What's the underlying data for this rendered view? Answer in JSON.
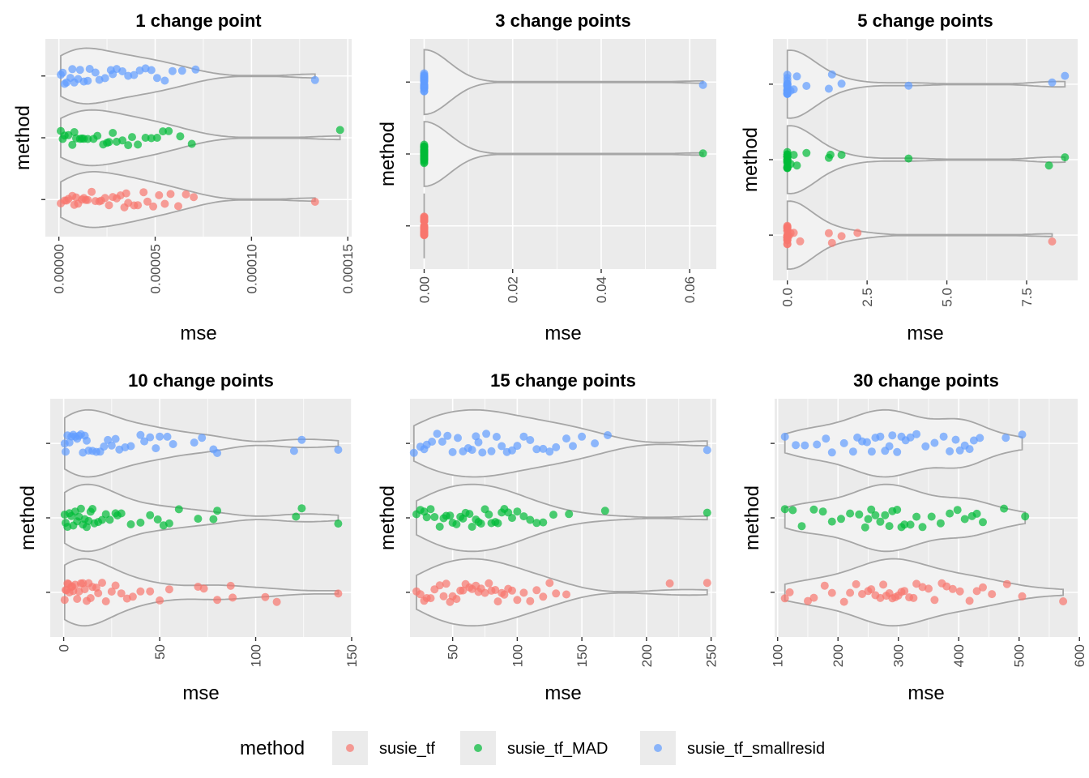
{
  "legend": {
    "title": "method",
    "items": [
      {
        "label": "susie_tf",
        "color": "#F8766D"
      },
      {
        "label": "susie_tf_MAD",
        "color": "#00BA38"
      },
      {
        "label": "susie_tf_smallresid",
        "color": "#619CFF"
      }
    ]
  },
  "chart_data": [
    {
      "type": "scatter",
      "title": "1 change point",
      "xlabel": "mse",
      "ylabel": "method",
      "xlim": [
        -7e-06,
        0.000152
      ],
      "x_ticks": [
        0,
        5e-05,
        0.0001,
        0.00015
      ],
      "x_tick_labels": [
        "0.00000",
        "0.00005",
        "0.00010",
        "0.00015"
      ],
      "grid": true,
      "series": [
        {
          "name": "susie_tf",
          "max": 0.000133,
          "values": [
            1e-06,
            3e-06,
            5e-06,
            7e-06,
            8e-06,
            1e-05,
            1.2e-05,
            1.4e-05,
            1.5e-05,
            1.7e-05,
            1.9e-05,
            2.1e-05,
            2.4e-05,
            2.6e-05,
            2.8e-05,
            3e-05,
            3.2e-05,
            3.4e-05,
            3.6e-05,
            3.9e-05,
            4.1e-05,
            4.4e-05,
            4.6e-05,
            4.9e-05,
            5.2e-05,
            5.5e-05,
            5.8e-05,
            6.2e-05,
            6.6e-05,
            7e-05,
            4e-06,
            9e-06,
            1.3e-05,
            2.2e-05,
            3.5e-05,
            0.000133
          ]
        },
        {
          "name": "susie_tf_MAD",
          "max": 0.000146,
          "values": [
            1e-06,
            3e-06,
            5e-06,
            7e-06,
            9e-06,
            1.1e-05,
            1.3e-05,
            1.5e-05,
            1.8e-05,
            2e-05,
            2.3e-05,
            2.5e-05,
            2.8e-05,
            3e-05,
            3.3e-05,
            3.6e-05,
            3.8e-05,
            4.1e-05,
            4.5e-05,
            4.8e-05,
            5.1e-05,
            5.4e-05,
            5.7e-05,
            6.3e-05,
            6.9e-05,
            2e-06,
            8e-06,
            1.2e-05,
            2.6e-05,
            0.000146
          ]
        },
        {
          "name": "susie_tf_smallresid",
          "max": 0.000133,
          "values": [
            1e-06,
            2e-06,
            4e-06,
            6e-06,
            8e-06,
            1e-05,
            1.1e-05,
            1.3e-05,
            1.6e-05,
            1.9e-05,
            2.1e-05,
            2.4e-05,
            2.7e-05,
            3e-05,
            3.3e-05,
            3.6e-05,
            3.9e-05,
            4.2e-05,
            4.5e-05,
            4.8e-05,
            5.1e-05,
            5.5e-05,
            5.9e-05,
            6.4e-05,
            7.1e-05,
            3e-06,
            7e-06,
            1.5e-05,
            2.8e-05,
            0.000133
          ]
        }
      ]
    },
    {
      "type": "scatter",
      "title": "3 change points",
      "xlabel": "mse",
      "ylabel": "method",
      "xlim": [
        -0.0032,
        0.066
      ],
      "x_ticks": [
        0,
        0.02,
        0.04,
        0.06
      ],
      "x_tick_labels": [
        "0.00",
        "0.02",
        "0.04",
        "0.06"
      ],
      "grid": true,
      "series": [
        {
          "name": "susie_tf",
          "max": 2e-05,
          "values": [
            0,
            0,
            0,
            0,
            0,
            0,
            0,
            0,
            0,
            0,
            0,
            0,
            0,
            0,
            0,
            0,
            0,
            0,
            0,
            0,
            0,
            0,
            0,
            0,
            0,
            0,
            0,
            0,
            0,
            0
          ]
        },
        {
          "name": "susie_tf_MAD",
          "max": 0.063,
          "values": [
            0,
            0,
            0,
            0,
            0,
            0,
            0,
            0,
            0,
            0,
            0,
            0,
            0,
            0,
            0,
            0,
            0,
            0,
            0,
            0,
            0,
            0,
            0,
            0,
            0,
            0,
            0,
            0,
            0,
            0.063
          ]
        },
        {
          "name": "susie_tf_smallresid",
          "max": 0.063,
          "values": [
            0,
            0,
            0,
            0,
            0,
            0,
            0,
            0,
            0,
            0,
            0,
            0,
            0,
            0,
            0,
            0,
            0,
            0,
            0,
            0,
            0,
            0,
            0,
            0,
            0,
            0,
            0,
            0,
            0,
            0.063
          ]
        }
      ]
    },
    {
      "type": "scatter",
      "title": "5 change points",
      "xlabel": "mse",
      "ylabel": "method",
      "xlim": [
        -0.45,
        9.1
      ],
      "x_ticks": [
        0,
        2.5,
        5,
        7.5
      ],
      "x_tick_labels": [
        "0.0",
        "2.5",
        "5.0",
        "7.5"
      ],
      "grid": true,
      "series": [
        {
          "name": "susie_tf",
          "max": 8.3,
          "values": [
            0,
            0,
            0,
            0,
            0,
            0,
            0,
            0,
            0,
            0,
            0,
            0,
            0,
            0,
            0,
            0,
            0,
            0,
            0,
            0,
            0,
            0.05,
            0.1,
            0.2,
            0.4,
            1.3,
            1.4,
            1.7,
            2.2,
            8.3
          ]
        },
        {
          "name": "susie_tf_MAD",
          "max": 8.7,
          "values": [
            0,
            0,
            0,
            0,
            0,
            0,
            0,
            0,
            0,
            0,
            0,
            0,
            0,
            0,
            0,
            0,
            0,
            0,
            0,
            0,
            0.1,
            0.2,
            0.3,
            0.6,
            1.3,
            1.35,
            1.7,
            3.8,
            8.2,
            8.7
          ]
        },
        {
          "name": "susie_tf_smallresid",
          "max": 8.7,
          "values": [
            0,
            0,
            0,
            0,
            0,
            0,
            0,
            0,
            0,
            0,
            0,
            0,
            0,
            0,
            0,
            0,
            0,
            0,
            0,
            0,
            0.1,
            0.2,
            0.3,
            0.6,
            1.3,
            1.4,
            1.7,
            3.8,
            8.3,
            8.7
          ]
        }
      ]
    },
    {
      "type": "scatter",
      "title": "10 change points",
      "xlabel": "mse",
      "ylabel": "method",
      "xlim": [
        -7,
        150
      ],
      "x_ticks": [
        0,
        50,
        100,
        150
      ],
      "x_tick_labels": [
        "0",
        "50",
        "100",
        "150"
      ],
      "grid": true,
      "series": [
        {
          "name": "susie_tf",
          "max": 143,
          "values": [
            0.5,
            1,
            1.5,
            2,
            2.5,
            3,
            4,
            4.5,
            5,
            6,
            7,
            8,
            9,
            10,
            11,
            12,
            13,
            14,
            15,
            17,
            18,
            20,
            22,
            25,
            27,
            30,
            33,
            36,
            40,
            45,
            50,
            55,
            70,
            73,
            80,
            87,
            88,
            105,
            111,
            143
          ]
        },
        {
          "name": "susie_tf_MAD",
          "max": 143,
          "values": [
            0.5,
            1,
            2,
            3,
            4,
            5,
            6,
            7,
            8,
            9,
            10,
            11,
            12,
            13,
            14,
            15,
            16,
            18,
            20,
            22,
            24,
            27,
            28,
            30,
            35,
            40,
            45,
            49,
            52,
            55,
            60,
            70,
            78,
            80,
            121,
            124,
            143
          ]
        },
        {
          "name": "susie_tf_smallresid",
          "max": 143,
          "values": [
            0.5,
            1,
            2,
            3,
            4,
            5,
            6,
            7,
            8,
            9,
            10,
            11,
            12,
            13,
            15,
            17,
            19,
            21,
            23,
            25,
            27,
            29,
            32,
            35,
            40,
            42,
            45,
            48,
            50,
            54,
            57,
            68,
            72,
            78,
            80,
            120,
            124,
            143
          ]
        }
      ]
    },
    {
      "type": "scatter",
      "title": "15 change points",
      "xlabel": "mse",
      "ylabel": "method",
      "xlim": [
        17,
        254
      ],
      "x_ticks": [
        50,
        100,
        150,
        200,
        250
      ],
      "x_tick_labels": [
        "50",
        "100",
        "150",
        "200",
        "250"
      ],
      "grid": true,
      "series": [
        {
          "name": "susie_tf",
          "max": 247,
          "values": [
            22,
            25,
            28,
            30,
            33,
            36,
            40,
            43,
            45,
            48,
            50,
            53,
            56,
            58,
            60,
            63,
            65,
            68,
            70,
            72,
            75,
            78,
            80,
            83,
            85,
            88,
            90,
            93,
            96,
            100,
            105,
            110,
            115,
            120,
            125,
            130,
            138,
            218,
            247
          ]
        },
        {
          "name": "susie_tf_MAD",
          "max": 247,
          "values": [
            22,
            25,
            28,
            30,
            33,
            36,
            40,
            43,
            45,
            48,
            50,
            53,
            56,
            58,
            60,
            63,
            65,
            68,
            70,
            72,
            75,
            78,
            80,
            83,
            85,
            88,
            90,
            93,
            96,
            100,
            105,
            110,
            115,
            120,
            128,
            140,
            168,
            247
          ]
        },
        {
          "name": "susie_tf_smallresid",
          "max": 247,
          "values": [
            20,
            25,
            28,
            30,
            34,
            38,
            42,
            46,
            50,
            54,
            58,
            62,
            65,
            68,
            70,
            73,
            76,
            80,
            84,
            88,
            92,
            96,
            100,
            105,
            110,
            115,
            120,
            125,
            130,
            138,
            143,
            150,
            160,
            170,
            247
          ]
        }
      ]
    },
    {
      "type": "scatter",
      "title": "30 change points",
      "xlabel": "mse",
      "ylabel": "method",
      "xlim": [
        95,
        597
      ],
      "x_ticks": [
        100,
        200,
        300,
        400,
        500,
        600
      ],
      "x_tick_labels": [
        "100",
        "200",
        "300",
        "400",
        "500",
        "600"
      ],
      "grid": true,
      "series": [
        {
          "name": "susie_tf",
          "max": 573,
          "values": [
            112,
            120,
            150,
            160,
            178,
            190,
            210,
            220,
            230,
            240,
            250,
            255,
            262,
            270,
            275,
            280,
            285,
            290,
            295,
            300,
            305,
            310,
            318,
            325,
            330,
            340,
            350,
            360,
            372,
            380,
            390,
            402,
            418,
            430,
            440,
            455,
            480,
            505,
            573
          ]
        },
        {
          "name": "susie_tf_MAD",
          "max": 510,
          "values": [
            112,
            125,
            140,
            160,
            175,
            190,
            205,
            220,
            235,
            245,
            250,
            255,
            262,
            270,
            278,
            285,
            290,
            298,
            305,
            310,
            320,
            330,
            340,
            355,
            370,
            385,
            398,
            410,
            422,
            430,
            440,
            475,
            510
          ]
        },
        {
          "name": "susie_tf_smallresid",
          "max": 505,
          "values": [
            112,
            130,
            145,
            165,
            180,
            190,
            210,
            225,
            232,
            240,
            248,
            256,
            262,
            270,
            278,
            285,
            290,
            298,
            305,
            312,
            320,
            330,
            345,
            360,
            375,
            385,
            395,
            402,
            410,
            418,
            425,
            435,
            478,
            505
          ]
        }
      ]
    }
  ]
}
